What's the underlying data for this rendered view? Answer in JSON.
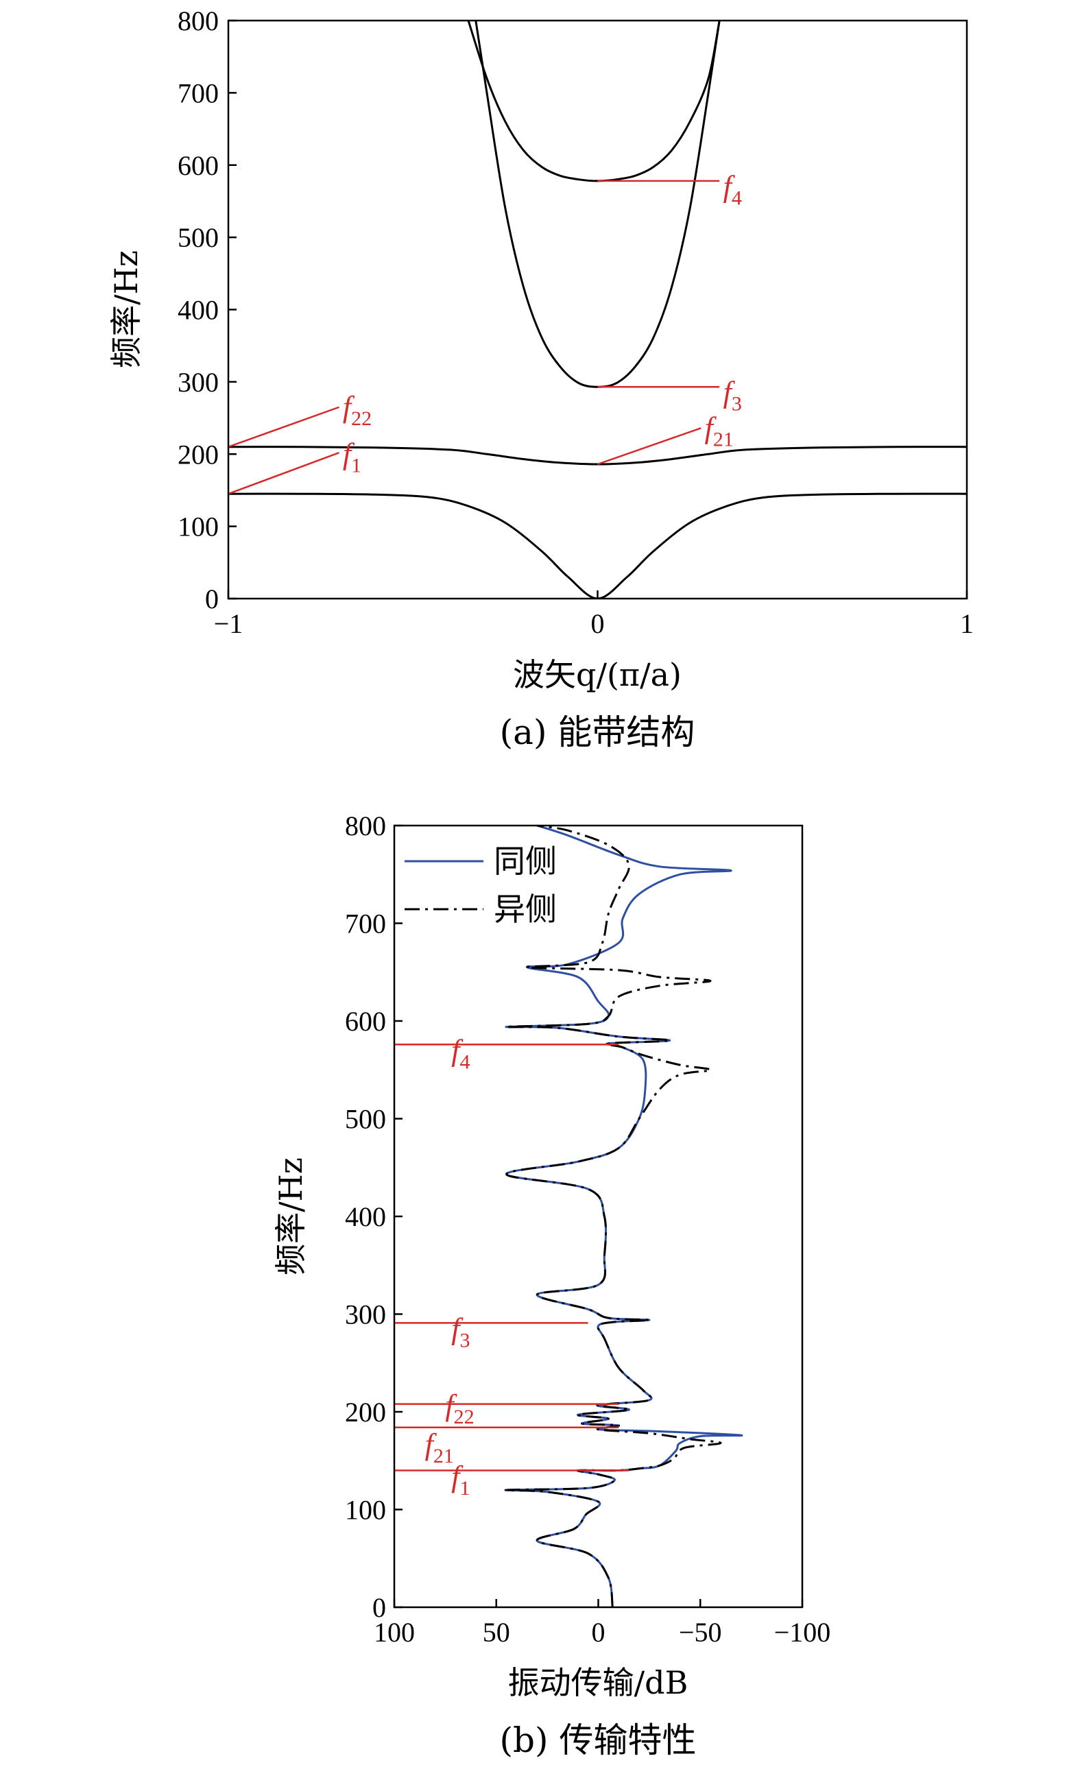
{
  "chart_data": [
    {
      "type": "line",
      "caption": "(a) 能带结构",
      "xlabel": "波矢q/(π/a)",
      "ylabel": "频率/Hz",
      "xlim": [
        -1,
        1
      ],
      "ylim": [
        0,
        800
      ],
      "xticks": [
        "−1",
        "0",
        "1"
      ],
      "xtick_values": [
        -1,
        0,
        1
      ],
      "yticks": [
        "0",
        "100",
        "200",
        "300",
        "400",
        "500",
        "600",
        "700",
        "800"
      ],
      "ytick_values": [
        0,
        100,
        200,
        300,
        400,
        500,
        600,
        700,
        800
      ],
      "line_color": "#000000",
      "annotation_color": "#d42a2a",
      "series": [
        {
          "x": [
            -1,
            -0.8,
            -0.6,
            -0.45,
            -0.35,
            -0.25,
            -0.15,
            -0.08,
            0,
            0.08,
            0.15,
            0.25,
            0.35,
            0.45,
            0.6,
            0.8,
            1
          ],
          "y": [
            145,
            145,
            144,
            140,
            128,
            105,
            65,
            30,
            0,
            30,
            65,
            105,
            128,
            140,
            144,
            145,
            145
          ]
        },
        {
          "x": [
            -1,
            -0.8,
            -0.6,
            -0.4,
            -0.3,
            -0.2,
            -0.1,
            0,
            0.1,
            0.2,
            0.3,
            0.4,
            0.6,
            0.8,
            1
          ],
          "y": [
            210,
            210,
            209,
            206,
            200,
            193,
            188,
            186,
            188,
            193,
            200,
            206,
            209,
            210,
            210
          ]
        },
        {
          "x": [
            -0.33,
            -0.3,
            -0.25,
            -0.2,
            -0.15,
            -0.1,
            -0.05,
            0,
            0.05,
            0.1,
            0.15,
            0.2,
            0.25,
            0.3,
            0.33
          ],
          "y": [
            800,
            700,
            540,
            430,
            360,
            320,
            298,
            293,
            298,
            320,
            360,
            430,
            540,
            700,
            800
          ]
        },
        {
          "x": [
            -0.35,
            -0.3,
            -0.25,
            -0.2,
            -0.15,
            -0.1,
            -0.05,
            0,
            0.05,
            0.1,
            0.15,
            0.2,
            0.25,
            0.3,
            0.33
          ],
          "y": [
            800,
            720,
            660,
            620,
            597,
            585,
            580,
            578,
            580,
            585,
            597,
            620,
            660,
            720,
            800
          ]
        }
      ],
      "annotations": [
        {
          "base": "f",
          "sub": "4",
          "x0": 0,
          "y0": 578,
          "x1": 0.33,
          "y1": 578,
          "tx": 0.34,
          "ty": 570
        },
        {
          "base": "f",
          "sub": "3",
          "x0": 0,
          "y0": 293,
          "x1": 0.33,
          "y1": 293,
          "tx": 0.34,
          "ty": 285
        },
        {
          "base": "f",
          "sub": "22",
          "x0": -1,
          "y0": 210,
          "x1": -0.7,
          "y1": 265,
          "tx": -0.69,
          "ty": 265
        },
        {
          "base": "f",
          "sub": "21",
          "x0": 0,
          "y0": 186,
          "x1": 0.28,
          "y1": 236,
          "tx": 0.29,
          "ty": 236
        },
        {
          "base": "f",
          "sub": "1",
          "x0": -1,
          "y0": 145,
          "x1": -0.7,
          "y1": 202,
          "tx": -0.69,
          "ty": 200
        }
      ]
    },
    {
      "type": "line",
      "caption": "(b) 传输特性",
      "xlabel": "振动传输/dB",
      "ylabel": "频率/Hz",
      "xlim": [
        100,
        -100
      ],
      "ylim": [
        0,
        800
      ],
      "xticks": [
        "100",
        "50",
        "0",
        "−50",
        "−100"
      ],
      "xtick_values": [
        100,
        50,
        0,
        -50,
        -100
      ],
      "yticks": [
        "0",
        "100",
        "200",
        "300",
        "400",
        "500",
        "600",
        "700",
        "800"
      ],
      "ytick_values": [
        0,
        100,
        200,
        300,
        400,
        500,
        600,
        700,
        800
      ],
      "annotation_color": "#d42a2a",
      "legend": {
        "placement": "top-left",
        "items": [
          {
            "label": "同侧",
            "color": "#2e4fa3",
            "dash": "solid"
          },
          {
            "label": "异侧",
            "color": "#000000",
            "dash": "dashdot"
          }
        ]
      },
      "series": [
        {
          "name": "同侧",
          "color": "#2e4fa3",
          "points": [
            [
              -7,
              0
            ],
            [
              -5,
              30
            ],
            [
              5,
              55
            ],
            [
              30,
              68
            ],
            [
              12,
              80
            ],
            [
              6,
              95
            ],
            [
              0,
              108
            ],
            [
              25,
              118
            ],
            [
              45,
              120
            ],
            [
              5,
              122
            ],
            [
              -8,
              130
            ],
            [
              0,
              136
            ],
            [
              10,
              140
            ],
            [
              -10,
              140
            ],
            [
              -20,
              142
            ],
            [
              -30,
              145
            ],
            [
              -38,
              160
            ],
            [
              -40,
              168
            ],
            [
              -50,
              175
            ],
            [
              -70,
              176
            ],
            [
              -30,
              180
            ],
            [
              0,
              182
            ],
            [
              -10,
              186
            ],
            [
              8,
              188
            ],
            [
              -5,
              193
            ],
            [
              10,
              197
            ],
            [
              -15,
              202
            ],
            [
              0,
              206
            ],
            [
              -5,
              208
            ],
            [
              -25,
              212
            ],
            [
              -22,
              222
            ],
            [
              -10,
              245
            ],
            [
              -3,
              275
            ],
            [
              0,
              288
            ],
            [
              -8,
              292
            ],
            [
              -25,
              294
            ],
            [
              -5,
              296
            ],
            [
              5,
              305
            ],
            [
              30,
              320
            ],
            [
              0,
              330
            ],
            [
              -3,
              360
            ],
            [
              -3,
              400
            ],
            [
              5,
              428
            ],
            [
              45,
              443
            ],
            [
              10,
              456
            ],
            [
              -10,
              470
            ],
            [
              -20,
              500
            ],
            [
              -23,
              530
            ],
            [
              -22,
              560
            ],
            [
              -12,
              573
            ],
            [
              -5,
              577
            ],
            [
              -35,
              580
            ],
            [
              -10,
              584
            ],
            [
              20,
              593
            ],
            [
              45,
              594
            ],
            [
              5,
              597
            ],
            [
              -5,
              605
            ],
            [
              0,
              620
            ],
            [
              10,
              645
            ],
            [
              35,
              655
            ],
            [
              15,
              658
            ],
            [
              -10,
              680
            ],
            [
              -12,
              705
            ],
            [
              -20,
              730
            ],
            [
              -40,
              750
            ],
            [
              -65,
              754
            ],
            [
              -30,
              758
            ],
            [
              -10,
              770
            ],
            [
              15,
              790
            ],
            [
              30,
              800
            ]
          ]
        },
        {
          "name": "异侧",
          "color": "#000000",
          "points": [
            [
              -7,
              0
            ],
            [
              -5,
              30
            ],
            [
              5,
              55
            ],
            [
              30,
              68
            ],
            [
              12,
              80
            ],
            [
              6,
              95
            ],
            [
              0,
              108
            ],
            [
              25,
              118
            ],
            [
              45,
              120
            ],
            [
              5,
              122
            ],
            [
              -8,
              130
            ],
            [
              0,
              136
            ],
            [
              10,
              140
            ],
            [
              -10,
              140
            ],
            [
              -20,
              142
            ],
            [
              -30,
              145
            ],
            [
              -37,
              152
            ],
            [
              -42,
              163
            ],
            [
              -60,
              168
            ],
            [
              -45,
              172
            ],
            [
              -25,
              178
            ],
            [
              0,
              182
            ],
            [
              -10,
              186
            ],
            [
              8,
              188
            ],
            [
              -5,
              193
            ],
            [
              10,
              197
            ],
            [
              -15,
              202
            ],
            [
              0,
              206
            ],
            [
              -5,
              208
            ],
            [
              -25,
              212
            ],
            [
              -22,
              222
            ],
            [
              -10,
              245
            ],
            [
              -3,
              275
            ],
            [
              0,
              288
            ],
            [
              -8,
              292
            ],
            [
              -25,
              294
            ],
            [
              -5,
              296
            ],
            [
              5,
              305
            ],
            [
              30,
              320
            ],
            [
              0,
              330
            ],
            [
              -3,
              360
            ],
            [
              -3,
              400
            ],
            [
              5,
              428
            ],
            [
              45,
              443
            ],
            [
              10,
              456
            ],
            [
              -10,
              470
            ],
            [
              -20,
              500
            ],
            [
              -30,
              530
            ],
            [
              -40,
              545
            ],
            [
              -55,
              550
            ],
            [
              -40,
              555
            ],
            [
              -22,
              565
            ],
            [
              -12,
              573
            ],
            [
              -5,
              577
            ],
            [
              -35,
              580
            ],
            [
              -10,
              584
            ],
            [
              20,
              593
            ],
            [
              45,
              594
            ],
            [
              5,
              597
            ],
            [
              -5,
              605
            ],
            [
              -10,
              625
            ],
            [
              -30,
              636
            ],
            [
              -55,
              641
            ],
            [
              -30,
              645
            ],
            [
              -10,
              652
            ],
            [
              35,
              655
            ],
            [
              5,
              660
            ],
            [
              -2,
              680
            ],
            [
              -5,
              710
            ],
            [
              -10,
              735
            ],
            [
              -15,
              760
            ],
            [
              -5,
              780
            ],
            [
              15,
              795
            ],
            [
              30,
              800
            ]
          ]
        }
      ],
      "annotations": [
        {
          "base": "f",
          "sub": "4",
          "y": 576,
          "x_end": -10,
          "tx": 72,
          "ty": 568
        },
        {
          "base": "f",
          "sub": "3",
          "y": 291,
          "x_end": 5,
          "tx": 72,
          "ty": 283
        },
        {
          "base": "f",
          "sub": "22",
          "y": 208,
          "x_end": -10,
          "tx": 75,
          "ty": 205
        },
        {
          "base": "f",
          "sub": "21",
          "y": 184,
          "x_end": -10,
          "tx": 85,
          "ty": 165
        },
        {
          "base": "f",
          "sub": "1",
          "y": 140,
          "x_end": -15,
          "tx": 72,
          "ty": 132
        }
      ]
    }
  ]
}
